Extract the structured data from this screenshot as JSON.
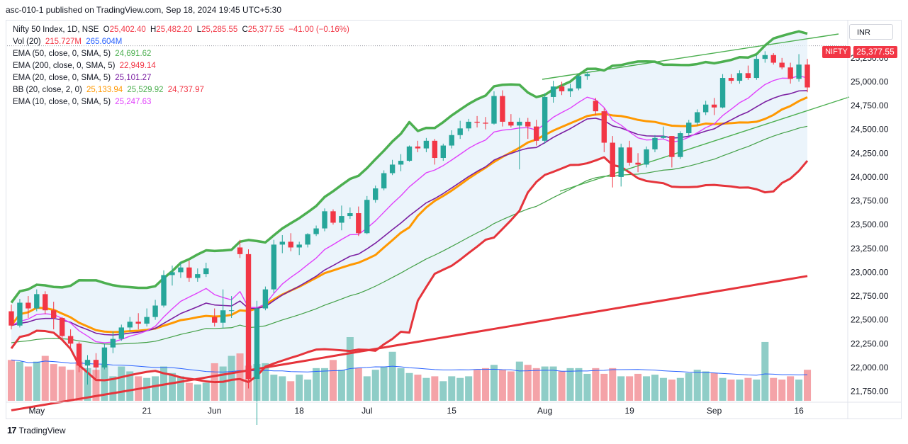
{
  "header": {
    "publish_line": "asc-010-1 published on TradingView.com, Sep 18, 2024 19:45 UTC+5:30"
  },
  "legend": {
    "symbol": "Nifty 50 Index, 1D, NSE",
    "ohlc": {
      "o_key": "O",
      "o": "25,402.40",
      "h_key": "H",
      "h": "25,482.20",
      "l_key": "L",
      "l": "25,285.55",
      "c_key": "C",
      "c": "25,377.55",
      "chg": "−41.00 (−0.16%)"
    },
    "vol": {
      "label": "Vol (20)",
      "v1": "215.727M",
      "v2": "265.604M"
    },
    "ema50": {
      "label": "EMA (50, close, 0, SMA, 5)",
      "value": "24,691.62"
    },
    "ema200": {
      "label": "EMA (200, close, 0, SMA, 5)",
      "value": "22,949.14"
    },
    "ema20": {
      "label": "EMA (20, close, 0, SMA, 5)",
      "value": "25,101.27"
    },
    "bb": {
      "label": "BB (20, close, 2, 0)",
      "basis": "25,133.94",
      "upper": "25,529.92",
      "lower": "24,737.97"
    },
    "ema10": {
      "label": "EMA (10, close, 0, SMA, 5)",
      "value": "25,247.63"
    }
  },
  "currency": "INR",
  "price_tag": {
    "symbol": "NIFTY",
    "price": "25,377.55"
  },
  "footer": {
    "brand": "TradingView",
    "logo_text": "17"
  },
  "colors": {
    "up": "#26a69a",
    "down": "#f23645",
    "vol_up": "#8fcdc7",
    "vol_down": "#f4a3a8",
    "bb_upper": "#4caf50",
    "bb_lower": "#e5343b",
    "bb_fill": "#e3f0fa",
    "ema10": "#e040fb",
    "ema20": "#7b1fa2",
    "ema50": "#ff9800",
    "ema200": "#e5343b",
    "vol_ma": "#2962ff",
    "trend": "#4caf50",
    "ema50_green": "#43a047"
  },
  "chart_data": {
    "type": "candlestick",
    "y_ticks": [
      21750,
      22000,
      22250,
      22500,
      22750,
      23000,
      23250,
      23500,
      23750,
      24000,
      24250,
      24500,
      24750,
      25000,
      25250
    ],
    "y_tick_labels": [
      "21,750.00",
      "22,000.00",
      "22,250.00",
      "22,500.00",
      "22,750.00",
      "23,000.00",
      "23,250.00",
      "23,500.00",
      "23,750.00",
      "24,000.00",
      "24,250.00",
      "24,500.00",
      "24,750.00",
      "25,000.00",
      "25,250.00"
    ],
    "x_ticks": [
      {
        "index": 3,
        "label": "May"
      },
      {
        "index": 16,
        "label": "21"
      },
      {
        "index": 24,
        "label": "Jun"
      },
      {
        "index": 34,
        "label": "18"
      },
      {
        "index": 42,
        "label": "Jul"
      },
      {
        "index": 52,
        "label": "15"
      },
      {
        "index": 63,
        "label": "Aug"
      },
      {
        "index": 73,
        "label": "19"
      },
      {
        "index": 83,
        "label": "Sep"
      },
      {
        "index": 93,
        "label": "16"
      }
    ],
    "ylim": [
      21650,
      25650
    ],
    "candles": [
      [
        22590,
        22660,
        22400,
        22440,
        50
      ],
      [
        22440,
        22720,
        22420,
        22680,
        48
      ],
      [
        22680,
        22750,
        22520,
        22620,
        42
      ],
      [
        22620,
        22820,
        22590,
        22770,
        48
      ],
      [
        22770,
        22800,
        22560,
        22600,
        55
      ],
      [
        22600,
        22690,
        22400,
        22520,
        45
      ],
      [
        22520,
        22530,
        22290,
        22330,
        42
      ],
      [
        22330,
        22400,
        22180,
        22250,
        38
      ],
      [
        22250,
        22270,
        21950,
        22020,
        48
      ],
      [
        22020,
        22130,
        21820,
        22080,
        40
      ],
      [
        22080,
        22150,
        21870,
        22000,
        38
      ],
      [
        22000,
        22250,
        21980,
        22210,
        45
      ],
      [
        22210,
        22380,
        22150,
        22300,
        30
      ],
      [
        22300,
        22450,
        22280,
        22420,
        42
      ],
      [
        22420,
        22530,
        22380,
        22480,
        36
      ],
      [
        22480,
        22570,
        22400,
        22460,
        30
      ],
      [
        22460,
        22620,
        22430,
        22530,
        28
      ],
      [
        22530,
        22710,
        22500,
        22650,
        30
      ],
      [
        22650,
        23020,
        22630,
        22970,
        42
      ],
      [
        22970,
        23070,
        22860,
        23000,
        34
      ],
      [
        23000,
        23110,
        22940,
        23050,
        30
      ],
      [
        23050,
        23120,
        22900,
        22940,
        22
      ],
      [
        22940,
        23040,
        22900,
        22980,
        20
      ],
      [
        22980,
        23100,
        22950,
        23040,
        22
      ],
      [
        22530,
        22620,
        22430,
        22470,
        46
      ],
      [
        22470,
        22820,
        22410,
        22600,
        42
      ],
      [
        22600,
        22750,
        22520,
        22600,
        55
      ],
      [
        23260,
        23340,
        23150,
        23190,
        58
      ],
      [
        23190,
        23240,
        21780,
        21880,
        43
      ],
      [
        21880,
        22700,
        21290,
        22620,
        45
      ],
      [
        22620,
        22850,
        22600,
        22820,
        46
      ],
      [
        22820,
        23340,
        22780,
        23290,
        32
      ],
      [
        23290,
        23390,
        23200,
        23320,
        30
      ],
      [
        23320,
        23410,
        23220,
        23260,
        24
      ],
      [
        23260,
        23320,
        23180,
        23290,
        32
      ],
      [
        23290,
        23410,
        23260,
        23400,
        26
      ],
      [
        23400,
        23490,
        23380,
        23460,
        40
      ],
      [
        23460,
        23670,
        23430,
        23640,
        40
      ],
      [
        23640,
        23660,
        23500,
        23520,
        50
      ],
      [
        23520,
        23700,
        23440,
        23590,
        38
      ],
      [
        23590,
        23680,
        23560,
        23620,
        78
      ],
      [
        23620,
        23690,
        23380,
        23410,
        40
      ],
      [
        23410,
        23800,
        23400,
        23760,
        30
      ],
      [
        23760,
        23910,
        23730,
        23880,
        38
      ],
      [
        23880,
        24070,
        23860,
        24040,
        42
      ],
      [
        24040,
        24180,
        24020,
        24130,
        60
      ],
      [
        24130,
        24240,
        24060,
        24170,
        40
      ],
      [
        24170,
        24330,
        24160,
        24320,
        34
      ],
      [
        24320,
        24380,
        24260,
        24300,
        32
      ],
      [
        24300,
        24410,
        24260,
        24380,
        28
      ],
      [
        24380,
        24400,
        24130,
        24200,
        30
      ],
      [
        24200,
        24350,
        24170,
        24330,
        24
      ],
      [
        24330,
        24490,
        24300,
        24440,
        30
      ],
      [
        24440,
        24590,
        24400,
        24510,
        28
      ],
      [
        24510,
        24610,
        24480,
        24580,
        30
      ],
      [
        24580,
        24640,
        24520,
        24570,
        38
      ],
      [
        24570,
        24630,
        24500,
        24560,
        40
      ],
      [
        24560,
        24900,
        24550,
        24850,
        44
      ],
      [
        24850,
        24910,
        24530,
        24580,
        38
      ],
      [
        24580,
        24660,
        24520,
        24540,
        36
      ],
      [
        24540,
        24620,
        24080,
        24580,
        48
      ],
      [
        24580,
        24620,
        24400,
        24530,
        44
      ],
      [
        24530,
        24600,
        24330,
        24380,
        40
      ],
      [
        24380,
        24880,
        24350,
        24840,
        42
      ],
      [
        24840,
        25010,
        24780,
        24950,
        42
      ],
      [
        24950,
        25000,
        24860,
        24900,
        36
      ],
      [
        24900,
        24980,
        24840,
        24930,
        40
      ],
      [
        24930,
        25080,
        24910,
        25060,
        40
      ],
      [
        25060,
        25100,
        25020,
        25080,
        33
      ],
      [
        24800,
        24830,
        24650,
        24690,
        40
      ],
      [
        24690,
        24720,
        24260,
        24360,
        33
      ],
      [
        24360,
        24430,
        23890,
        24000,
        40
      ],
      [
        24000,
        24350,
        23900,
        24310,
        30
      ],
      [
        24310,
        24380,
        24120,
        24150,
        30
      ],
      [
        24150,
        24250,
        24050,
        24130,
        33
      ],
      [
        24130,
        24320,
        24100,
        24290,
        30
      ],
      [
        24290,
        24440,
        24260,
        24410,
        32
      ],
      [
        24410,
        24530,
        24400,
        24430,
        28
      ],
      [
        24430,
        24430,
        24100,
        24210,
        26
      ],
      [
        24210,
        24480,
        24190,
        24460,
        28
      ],
      [
        24460,
        24600,
        24430,
        24570,
        34
      ],
      [
        24570,
        24710,
        24540,
        24680,
        38
      ],
      [
        24680,
        24800,
        24650,
        24760,
        36
      ],
      [
        24760,
        24830,
        24650,
        24730,
        34
      ],
      [
        24730,
        25080,
        24720,
        25040,
        28
      ],
      [
        25040,
        25080,
        24980,
        25010,
        26
      ],
      [
        25010,
        25120,
        24980,
        25090,
        26
      ],
      [
        25090,
        25170,
        25020,
        25040,
        28
      ],
      [
        25040,
        25280,
        25020,
        25240,
        26
      ],
      [
        25240,
        25320,
        25200,
        25280,
        72
      ],
      [
        25280,
        25300,
        25180,
        25200,
        28
      ],
      [
        25200,
        25250,
        25130,
        25150,
        26
      ],
      [
        25150,
        25200,
        24980,
        25030,
        30
      ],
      [
        25030,
        25290,
        25000,
        25180,
        26
      ],
      [
        25180,
        25240,
        24890,
        24940,
        38
      ]
    ]
  }
}
